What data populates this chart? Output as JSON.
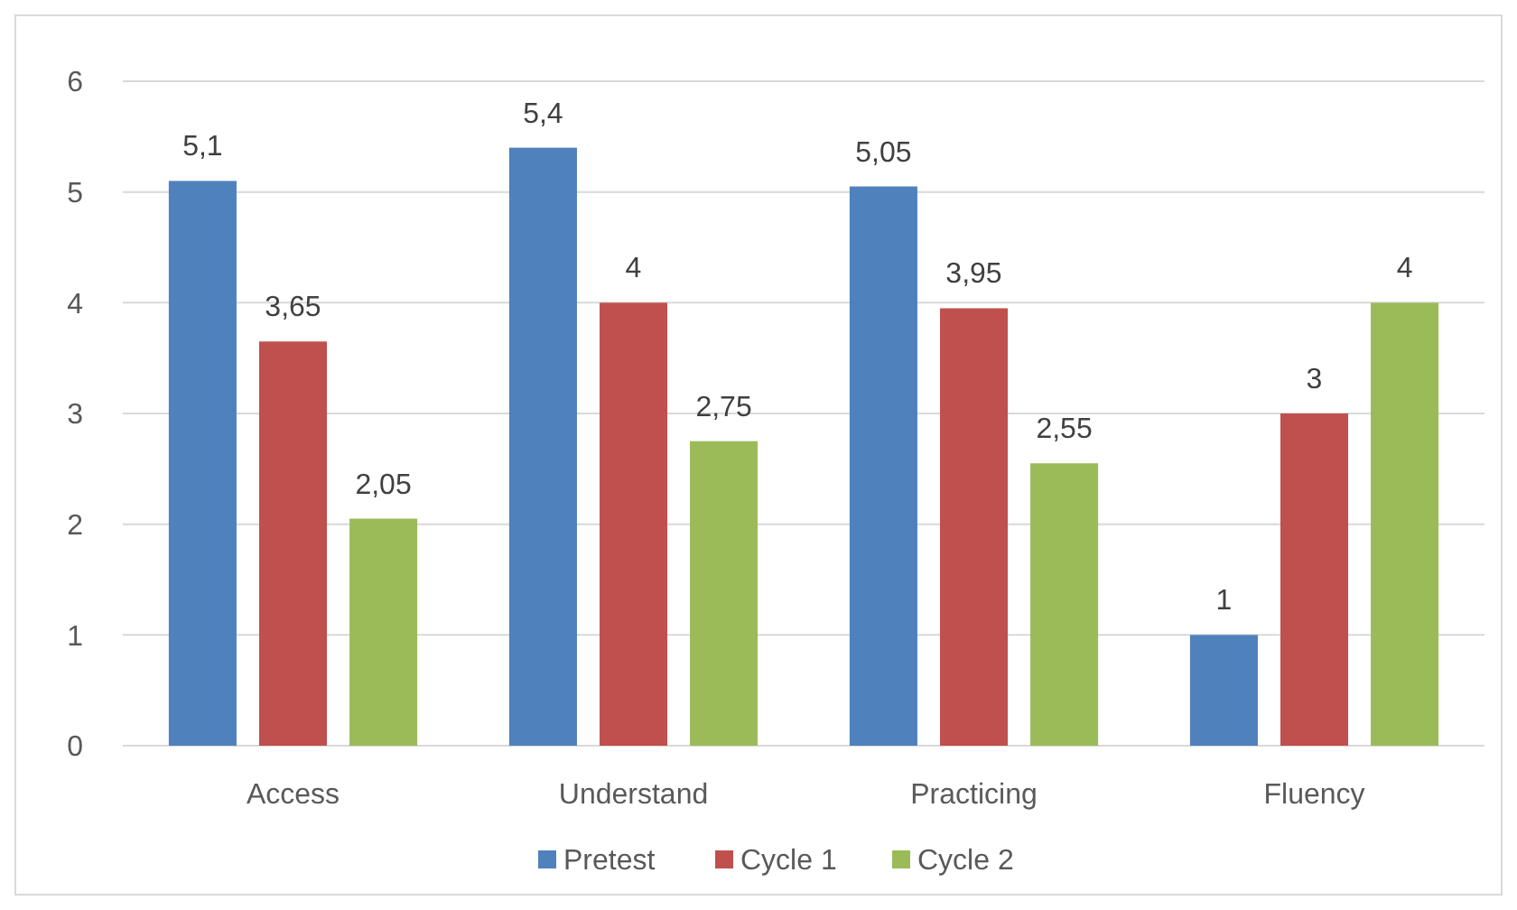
{
  "chart_data": {
    "type": "bar",
    "categories": [
      "Access",
      "Understand",
      "Practicing",
      "Fluency"
    ],
    "series": [
      {
        "name": "Pretest",
        "color": "#4f81bd",
        "values": [
          5.1,
          5.4,
          5.05,
          1
        ],
        "value_labels": [
          "5,1",
          "5,4",
          "5,05",
          "1"
        ]
      },
      {
        "name": "Cycle 1",
        "color": "#c0504d",
        "values": [
          3.65,
          4,
          3.95,
          3
        ],
        "value_labels": [
          "3,65",
          "4",
          "3,95",
          "3"
        ]
      },
      {
        "name": "Cycle 2",
        "color": "#9bbb59",
        "values": [
          2.05,
          2.75,
          2.55,
          4
        ],
        "value_labels": [
          "2,05",
          "2,75",
          "2,55",
          "4"
        ]
      }
    ],
    "ylim": [
      0,
      6
    ],
    "yticks": [
      0,
      1,
      2,
      3,
      4,
      5,
      6
    ],
    "grid": "y",
    "legend": "bottom"
  }
}
